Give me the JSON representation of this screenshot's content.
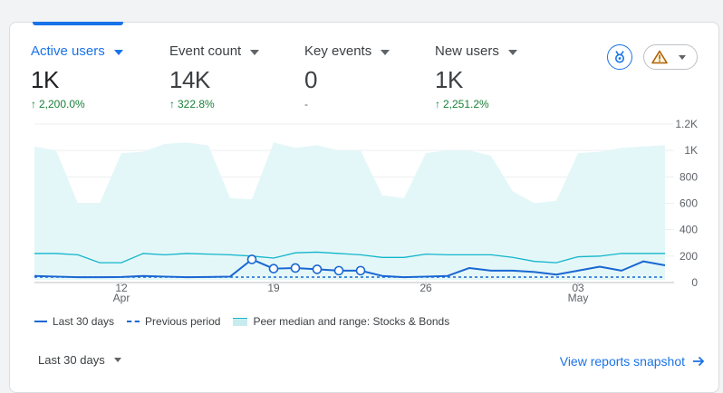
{
  "metrics": [
    {
      "label": "Active users",
      "value": "1K",
      "change": "2,200.0%",
      "trend": "up"
    },
    {
      "label": "Event count",
      "value": "14K",
      "change": "322.8%",
      "trend": "up"
    },
    {
      "label": "Key events",
      "value": "0",
      "change": "-",
      "trend": "none"
    },
    {
      "label": "New users",
      "value": "1K",
      "change": "2,251.2%",
      "trend": "up"
    }
  ],
  "icons": {
    "insights": "medal-insights-icon",
    "warning": "warning-triangle-icon"
  },
  "colors": {
    "primary": "#1a73e8",
    "positive": "#188038",
    "series_line": "#1967d2",
    "peer_fill": "#e4f7f8",
    "peer_line": "#12b5cb",
    "warning": "#b06000"
  },
  "chart_data": {
    "type": "line",
    "y_ticks": [
      "1.2K",
      "1K",
      "800",
      "600",
      "400",
      "200",
      "0"
    ],
    "ylim": [
      0,
      1200
    ],
    "x_tick_labels": [
      {
        "day": "12",
        "month": "Apr"
      },
      {
        "day": "19",
        "month": ""
      },
      {
        "day": "26",
        "month": ""
      },
      {
        "day": "03",
        "month": "May"
      }
    ],
    "x_tick_index": [
      4,
      11,
      18,
      25
    ],
    "days": 30,
    "series": [
      {
        "name": "Last 30 days",
        "values": [
          50,
          45,
          40,
          40,
          42,
          50,
          45,
          40,
          42,
          45,
          175,
          105,
          110,
          100,
          90,
          90,
          50,
          40,
          45,
          50,
          110,
          90,
          90,
          80,
          60,
          90,
          120,
          90,
          160,
          130
        ]
      },
      {
        "name": "Previous period",
        "values": [
          0,
          0,
          0,
          0,
          0,
          0,
          0,
          0,
          0,
          0,
          0,
          0,
          0,
          0,
          0,
          0,
          0,
          0,
          0,
          0,
          0,
          0,
          0,
          0,
          0,
          0,
          0,
          0,
          0,
          0
        ]
      },
      {
        "name": "Peer median and range: Stocks & Bonds",
        "median": [
          220,
          220,
          210,
          150,
          150,
          220,
          210,
          220,
          215,
          210,
          200,
          185,
          225,
          230,
          220,
          210,
          190,
          190,
          215,
          210,
          210,
          210,
          190,
          160,
          150,
          195,
          200,
          220,
          220,
          220
        ],
        "upper": [
          1030,
          1000,
          600,
          600,
          980,
          990,
          1050,
          1060,
          1040,
          640,
          630,
          1060,
          1020,
          1040,
          1000,
          1000,
          660,
          640,
          980,
          1000,
          1000,
          960,
          690,
          600,
          620,
          980,
          990,
          1020,
          1030,
          1040
        ],
        "lower": [
          20,
          20,
          20,
          20,
          20,
          20,
          20,
          20,
          20,
          20,
          20,
          20,
          20,
          20,
          20,
          20,
          20,
          20,
          20,
          20,
          20,
          20,
          20,
          20,
          20,
          20,
          20,
          20,
          20,
          20
        ]
      }
    ],
    "highlighted_points": [
      10,
      11,
      12,
      13,
      14,
      15
    ],
    "grid": true,
    "legend_position": "bottom-left"
  },
  "legend": {
    "last": "Last 30 days",
    "previous": "Previous period",
    "peer": "Peer median and range: Stocks & Bonds"
  },
  "footer": {
    "date_range": "Last 30 days",
    "link": "View reports snapshot"
  }
}
